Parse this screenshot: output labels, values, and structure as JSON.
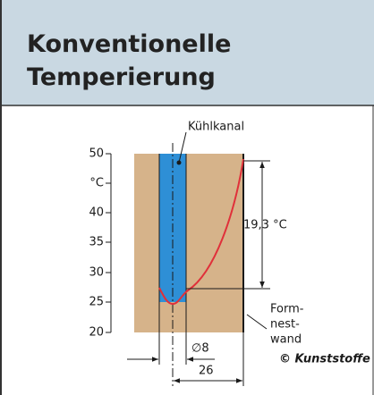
{
  "header": {
    "title_lines": [
      "Konventionelle",
      "Temperierung"
    ]
  },
  "diagram": {
    "axis_labels": [
      "50",
      "°C",
      "40",
      "35",
      "30",
      "25",
      "20"
    ],
    "channel_label": "Kühlkanal",
    "difference_label": "19,3 °C",
    "diameter_label": "∅8",
    "distance_label": "26",
    "wall_label_lines": [
      "Form-",
      "nest-",
      "wand"
    ],
    "credit": "© Kunststoffe"
  }
}
